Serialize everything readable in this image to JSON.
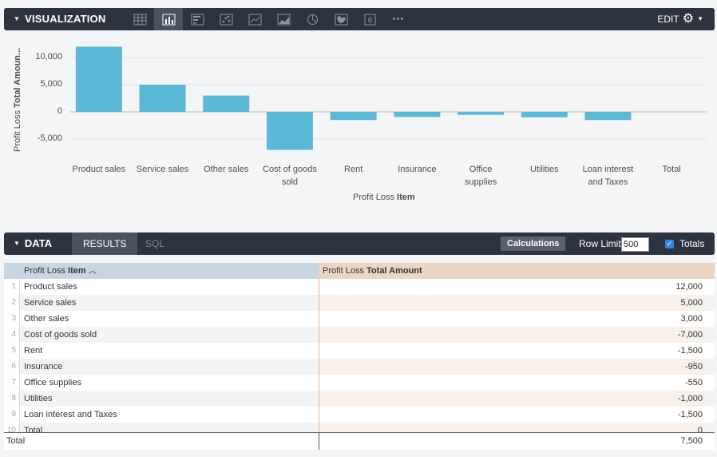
{
  "visualization": {
    "title": "VISUALIZATION",
    "edit_label": "EDIT",
    "toolbar_icons": [
      "table-icon",
      "column-chart-icon",
      "bar-chart-icon",
      "scatter-icon",
      "line-chart-icon",
      "area-chart-icon",
      "pie-chart-icon",
      "map-icon",
      "single-value-icon",
      "more-icon"
    ],
    "single_value_glyph": "6",
    "more_glyph": "•••",
    "active_icon": "column-chart-icon",
    "bar_color": "#5ab9d6"
  },
  "chart_data": {
    "type": "bar",
    "categories": [
      "Product sales",
      "Service sales",
      "Other sales",
      "Cost of goods sold",
      "Rent",
      "Insurance",
      "Office supplies",
      "Utilities",
      "Loan interest and Taxes",
      "Total"
    ],
    "category_labels": [
      [
        "Product sales"
      ],
      [
        "Service sales"
      ],
      [
        "Other sales"
      ],
      [
        "Cost of goods",
        "sold"
      ],
      [
        "Rent"
      ],
      [
        "Insurance"
      ],
      [
        "Office",
        "supplies"
      ],
      [
        "Utilities"
      ],
      [
        "Loan interest",
        "and Taxes"
      ],
      [
        "Total"
      ]
    ],
    "values": [
      12000,
      5000,
      3000,
      -7000,
      -1500,
      -950,
      -550,
      -1000,
      -1500,
      0
    ],
    "yticks": [
      10000,
      5000,
      0,
      -5000
    ],
    "ytick_labels": [
      "10,000",
      "5,000",
      "0",
      "-5,000"
    ],
    "ylim": [
      -7500,
      12500
    ],
    "ylabel_prefix": "Profit Loss ",
    "ylabel_bold": "Total Amoun...",
    "xlabel_prefix": "Profit Loss ",
    "xlabel_bold": "Item",
    "grid": true
  },
  "data": {
    "title": "DATA",
    "tab_results": "RESULTS",
    "tab_sql": "SQL",
    "calculations_label": "Calculations",
    "row_limit_label": "Row Limit",
    "row_limit_value": "500",
    "totals_label": "Totals",
    "totals_checked": true
  },
  "table": {
    "col1_prefix": "Profit Loss ",
    "col1_bold": "Item",
    "col1_sort": "︿",
    "col2_prefix": "Profit Loss ",
    "col2_bold": "Total Amount",
    "rows": [
      {
        "idx": "1",
        "name": "Product sales",
        "value": "12,000"
      },
      {
        "idx": "2",
        "name": "Service sales",
        "value": "5,000"
      },
      {
        "idx": "3",
        "name": "Other sales",
        "value": "3,000"
      },
      {
        "idx": "4",
        "name": "Cost of goods sold",
        "value": "-7,000"
      },
      {
        "idx": "5",
        "name": "Rent",
        "value": "-1,500"
      },
      {
        "idx": "6",
        "name": "Insurance",
        "value": "-950"
      },
      {
        "idx": "7",
        "name": "Office supplies",
        "value": "-550"
      },
      {
        "idx": "8",
        "name": "Utilities",
        "value": "-1,000"
      },
      {
        "idx": "9",
        "name": "Loan interest and Taxes",
        "value": "-1,500"
      },
      {
        "idx": "10",
        "name": "Total",
        "value": "0"
      }
    ],
    "footer_label": "Total",
    "footer_value": "7,500"
  }
}
